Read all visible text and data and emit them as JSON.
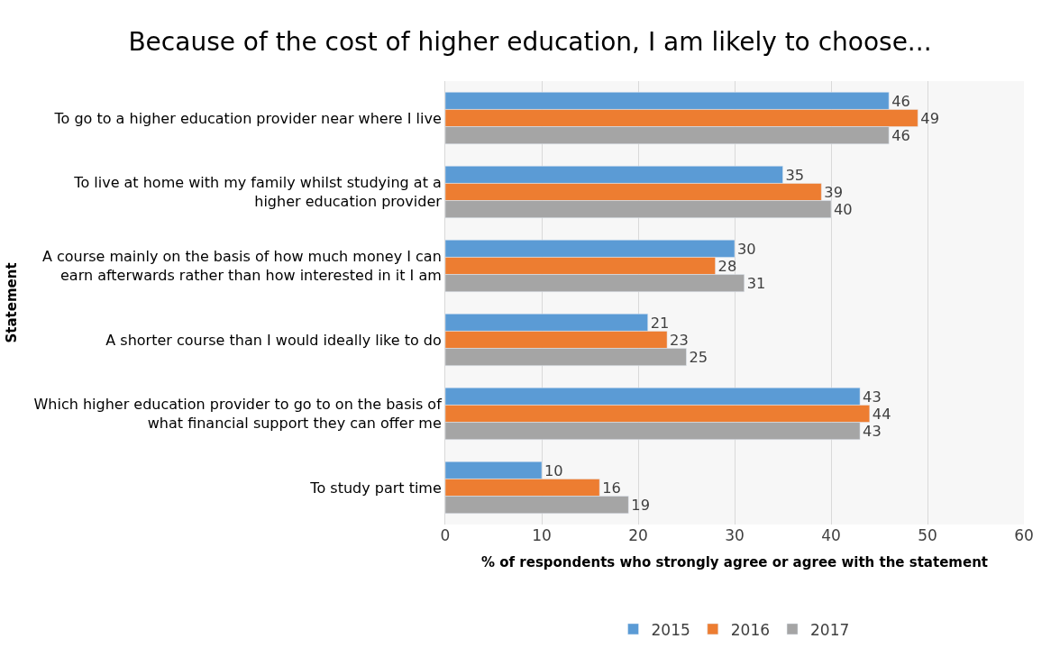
{
  "chart_data": {
    "type": "bar",
    "orientation": "horizontal",
    "title": "Because of the cost of higher education, I am likely to choose...",
    "xlabel": "% of respondents who strongly agree or agree with the statement",
    "ylabel": "Statement",
    "categories": [
      "To go to a higher education provider near where I live",
      "To live at home with my family whilst studying at a higher education provider",
      "A course mainly on the basis of how much money I can earn afterwards rather than how interested in it I am",
      "A shorter course than I would ideally like to do",
      "Which higher education provider to go to on the basis of what financial support they can offer me",
      "To study part time"
    ],
    "series": [
      {
        "name": "2015",
        "color": "#5b9bd5",
        "values": [
          46,
          35,
          30,
          21,
          43,
          10
        ]
      },
      {
        "name": "2016",
        "color": "#ed7d31",
        "values": [
          49,
          39,
          28,
          23,
          44,
          16
        ]
      },
      {
        "name": "2017",
        "color": "#a5a5a5",
        "values": [
          46,
          40,
          31,
          25,
          43,
          19
        ]
      }
    ],
    "xlim": [
      0,
      60
    ],
    "xticks": [
      0,
      10,
      20,
      30,
      40,
      50,
      60
    ],
    "grid": "x",
    "legend": "bottom",
    "data_labels": true
  }
}
